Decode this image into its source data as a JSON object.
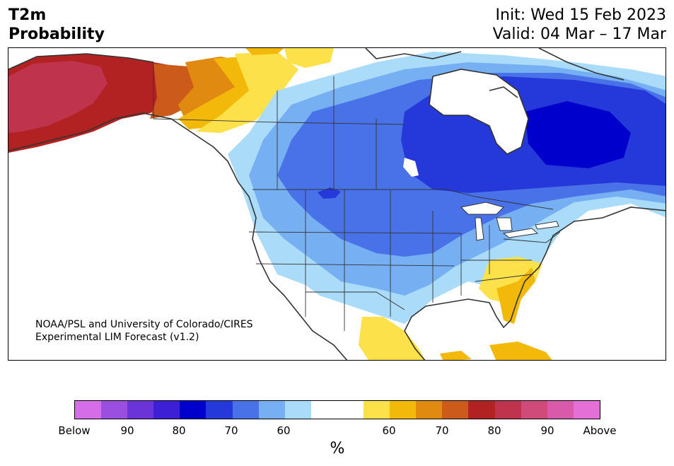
{
  "title": {
    "variable": "T2m",
    "quantity": "Probability",
    "init": "Init: Wed 15 Feb 2023",
    "valid": "Valid: 04 Mar – 17 Mar"
  },
  "credit": {
    "line1": "NOAA/PSL and University of Colorado/CIRES",
    "line2": "Experimental LIM Forecast (v1.2)"
  },
  "colorbar": {
    "colors": [
      "#d66de8",
      "#9b4fe0",
      "#6a34d8",
      "#3d1fd6",
      "#0000cc",
      "#2538d9",
      "#4a72e8",
      "#76b0f2",
      "#aadcfa",
      "#ffffff",
      "#ffffff",
      "#fde14a",
      "#f2b90a",
      "#e08a12",
      "#cc5a1a",
      "#b22222",
      "#c0334d",
      "#d04a7a",
      "#d95aa8",
      "#e46fd6"
    ],
    "tick_labels": [
      "Below",
      "90",
      "80",
      "70",
      "60",
      "60",
      "70",
      "80",
      "90",
      "Above"
    ],
    "unit": "%"
  },
  "map": {
    "region": "North America",
    "categories": {
      "above_normal_colors": [
        "#fde14a",
        "#f2b90a",
        "#e08a12",
        "#cc5a1a",
        "#b22222",
        "#c0334d"
      ],
      "below_normal_colors": [
        "#aadcfa",
        "#76b0f2",
        "#4a72e8",
        "#2538d9",
        "#0000cc"
      ]
    }
  }
}
